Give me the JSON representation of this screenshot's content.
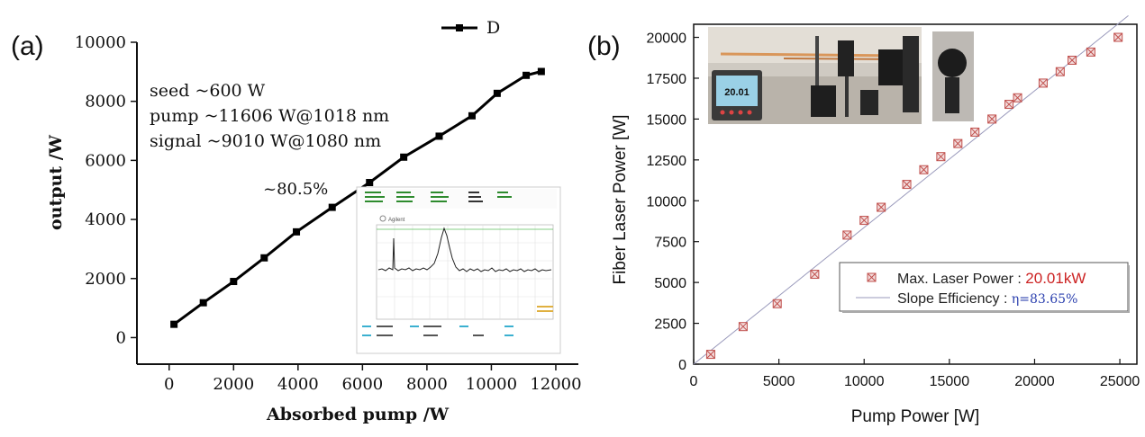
{
  "chart_data": [
    {
      "type": "line",
      "panel_label": "(a)",
      "xlabel": "Absorbed pump /W",
      "ylabel": "output /W",
      "xlim": [
        -1000,
        12700
      ],
      "ylim": [
        -900,
        10000
      ],
      "x_ticks": [
        0,
        2000,
        4000,
        6000,
        8000,
        10000,
        12000
      ],
      "y_ticks": [
        0,
        2000,
        4000,
        6000,
        8000,
        10000
      ],
      "grid": false,
      "legend_position": "top-right",
      "series": [
        {
          "name": "D",
          "x": [
            150,
            1060,
            2000,
            2950,
            3950,
            5060,
            6220,
            7280,
            8380,
            9400,
            10180,
            11080,
            11550
          ],
          "y": [
            450,
            1180,
            1900,
            2700,
            3580,
            4410,
            5250,
            6110,
            6820,
            7510,
            8270,
            8880,
            9010
          ]
        }
      ],
      "annotations": {
        "seed": "seed ~600 W",
        "pump": "pump ~11606 W@1018 nm",
        "signal": "signal ~9010 W@1080 nm",
        "efficiency": "~80.5%"
      },
      "inset": {
        "description_icon": "spectrum-analyzer-screenshot",
        "brand": "Agilent"
      }
    },
    {
      "type": "scatter",
      "panel_label": "(b)",
      "xlabel": "Pump Power [W]",
      "ylabel": "Fiber Laser Power [W]",
      "xlim": [
        0,
        26000
      ],
      "ylim": [
        0,
        20800
      ],
      "x_ticks": [
        0,
        5000,
        10000,
        15000,
        20000,
        25000
      ],
      "y_ticks": [
        0,
        2500,
        5000,
        7500,
        10000,
        12500,
        15000,
        17500,
        20000
      ],
      "grid": false,
      "legend_position": "bottom-right",
      "series": [
        {
          "name": "Max. Laser Power : ",
          "name_value": "20.01kW",
          "marker_color": "#c0504d",
          "x": [
            1000,
            2900,
            4900,
            7100,
            9000,
            10000,
            11000,
            12500,
            13500,
            14500,
            15500,
            16500,
            17500,
            18500,
            19000,
            20500,
            21500,
            22200,
            23300,
            24900
          ],
          "y": [
            600,
            2300,
            3700,
            5500,
            7900,
            8800,
            9600,
            11000,
            11900,
            12700,
            13500,
            14200,
            15000,
            15900,
            16300,
            17200,
            17900,
            18600,
            19100,
            20000
          ]
        },
        {
          "name": "Slope Efficiency : ",
          "name_value": "η=83.65%",
          "line_color": "#9999bb",
          "x": [
            0,
            25500
          ],
          "y": [
            0,
            21330
          ]
        }
      ],
      "inset": {
        "description_icon": "power-meter-photo",
        "meter_reading": "20.01"
      }
    }
  ],
  "colors": {
    "series_a": "#000000",
    "marker_b": "#c0504d",
    "fit_b": "#9999bb",
    "legend_value_red": "#cc2222",
    "legend_value_blue": "#2a3fae"
  }
}
